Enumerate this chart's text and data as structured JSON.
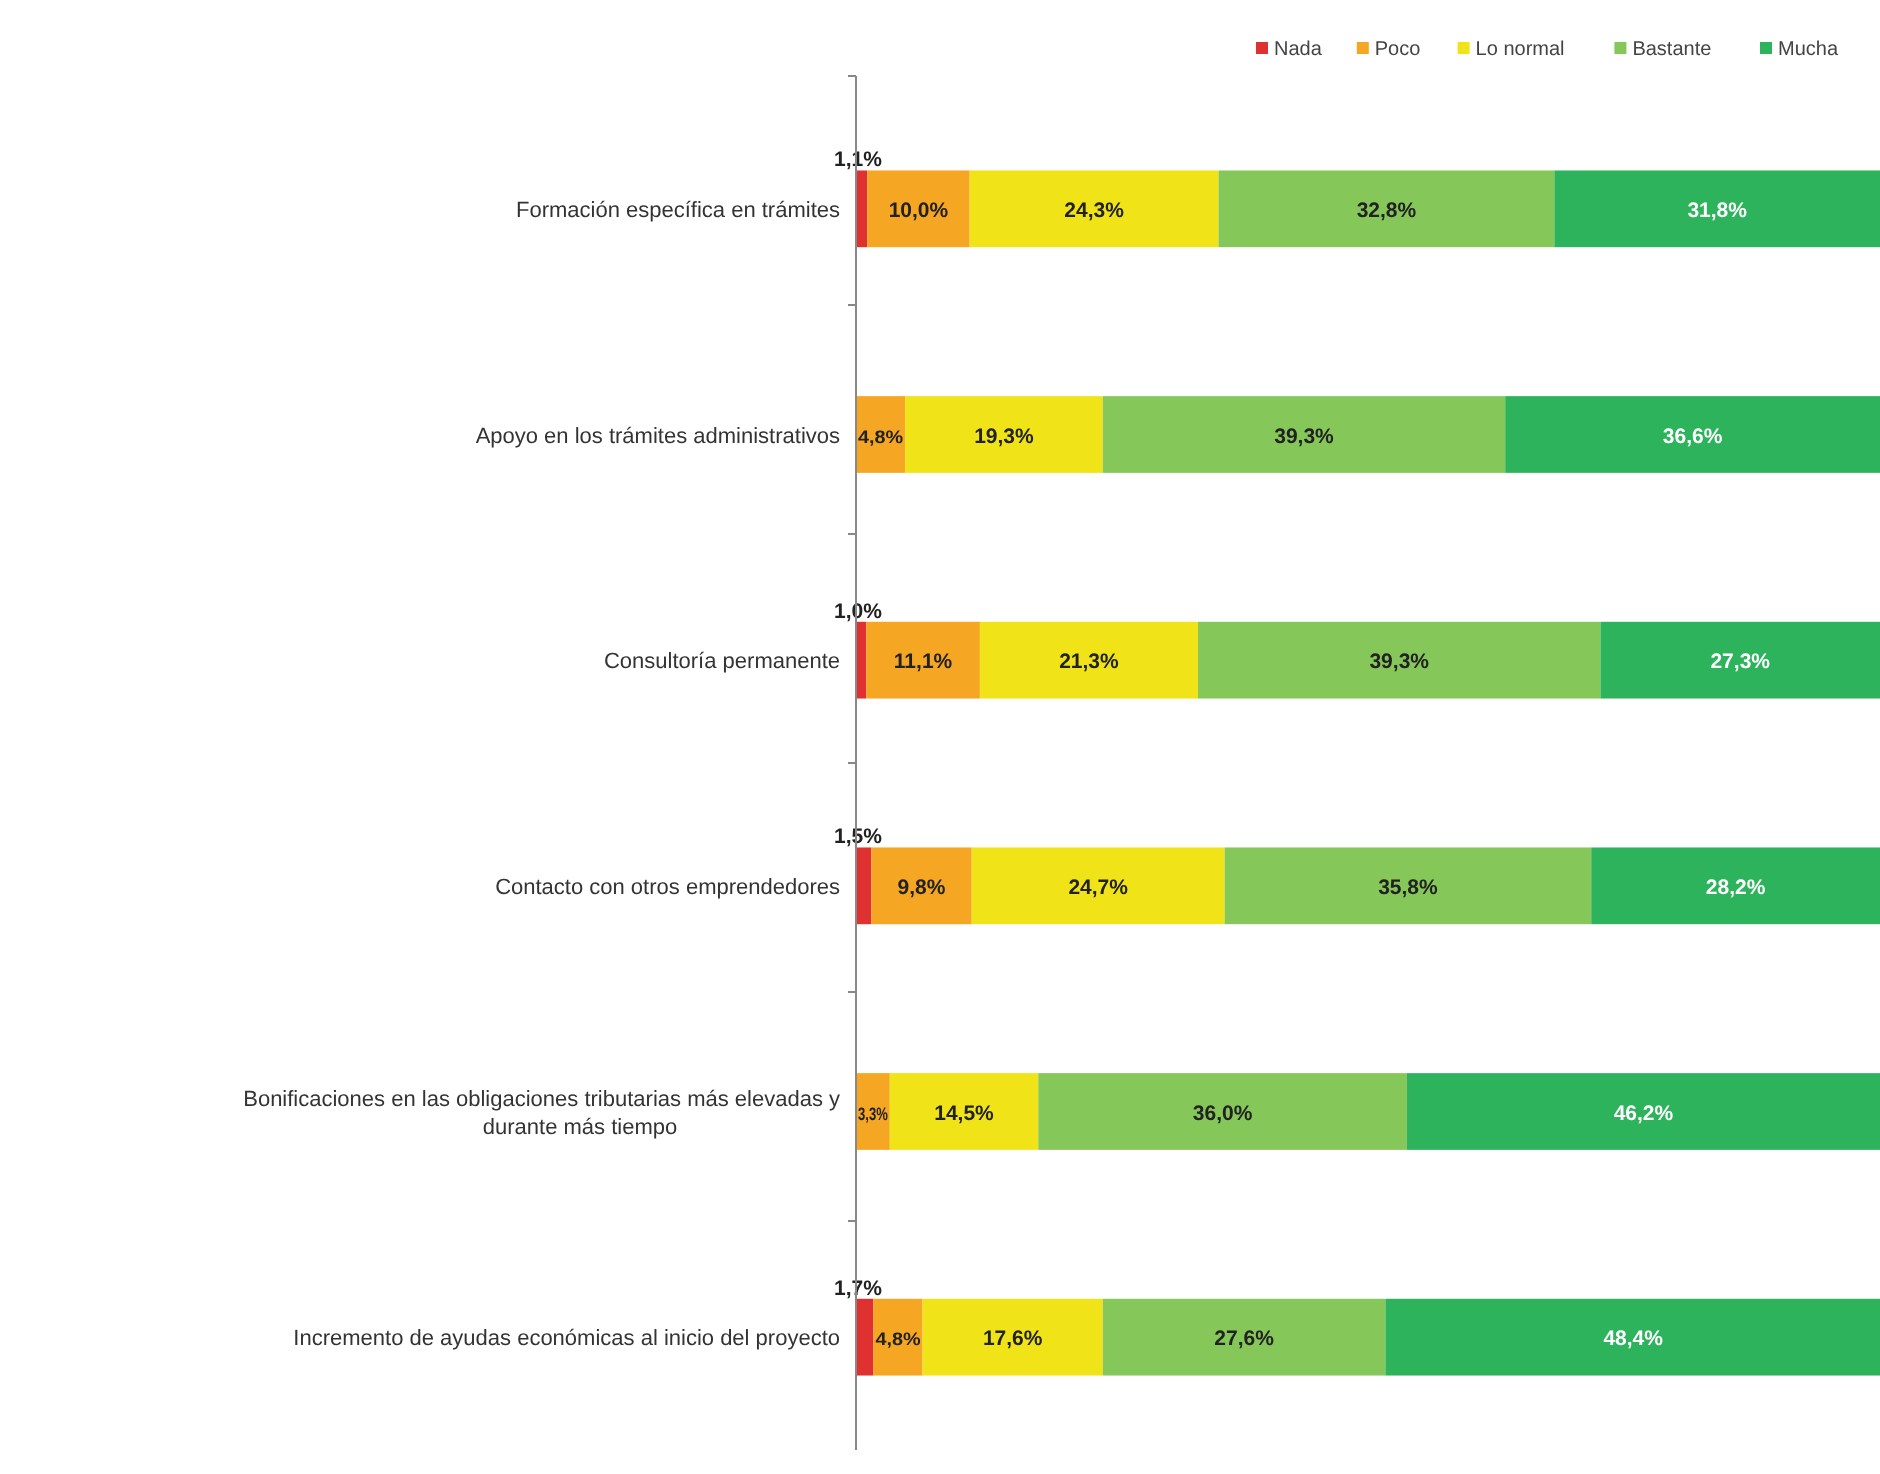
{
  "chart_data": {
    "type": "bar",
    "orientation": "horizontal",
    "stacked": true,
    "legend": "top",
    "data_labels": false,
    "xlim": [
      0,
      100
    ],
    "tick_labels": "y",
    "categories": [
      "Formación específica en trámites",
      "Apoyo en los trámites administrativos",
      "Consultoría permanente",
      "Contacto con otros emprendedores",
      "Bonificaciones en las obligaciones tributarias más elevadas y durante más tiempo",
      "Incremento de ayudas económicas al inicio del proyecto"
    ],
    "series": [
      {
        "name": "Nada",
        "color": "#e03131",
        "values": [
          1.1,
          null,
          1.0,
          1.5,
          null,
          1.7
        ],
        "value_labels": [
          "1,1%",
          null,
          "1,0%",
          "1,5%",
          null,
          "1,7%"
        ]
      },
      {
        "name": "Poco",
        "color": "#f5a623",
        "values": [
          10.0,
          4.8,
          11.1,
          9.8,
          3.3,
          4.8
        ],
        "value_labels": [
          "10,0%",
          "4,8%",
          "11,1%",
          "9,8%",
          "3,3%",
          "4,8%"
        ]
      },
      {
        "name": "Lo normal",
        "color": "#f0e418",
        "values": [
          24.3,
          19.3,
          21.3,
          24.7,
          14.5,
          17.6
        ],
        "value_labels": [
          "24,3%",
          "19,3%",
          "21,3%",
          "24,7%",
          "14,5%",
          "17,6%"
        ]
      },
      {
        "name": "Bastante",
        "color": "#86c75a",
        "values": [
          32.8,
          39.3,
          39.3,
          35.8,
          36.0,
          27.6
        ],
        "value_labels": [
          "32,8%",
          "39,3%",
          "39,3%",
          "35,8%",
          "36,0%",
          "27,6%"
        ]
      },
      {
        "name": "Mucha",
        "color": "#2db35c",
        "values": [
          31.8,
          36.6,
          27.3,
          28.2,
          46.2,
          48.4
        ],
        "value_labels": [
          "31,8%",
          "36,6%",
          "27,3%",
          "28,2%",
          "46,2%",
          "48,4%"
        ]
      }
    ]
  }
}
